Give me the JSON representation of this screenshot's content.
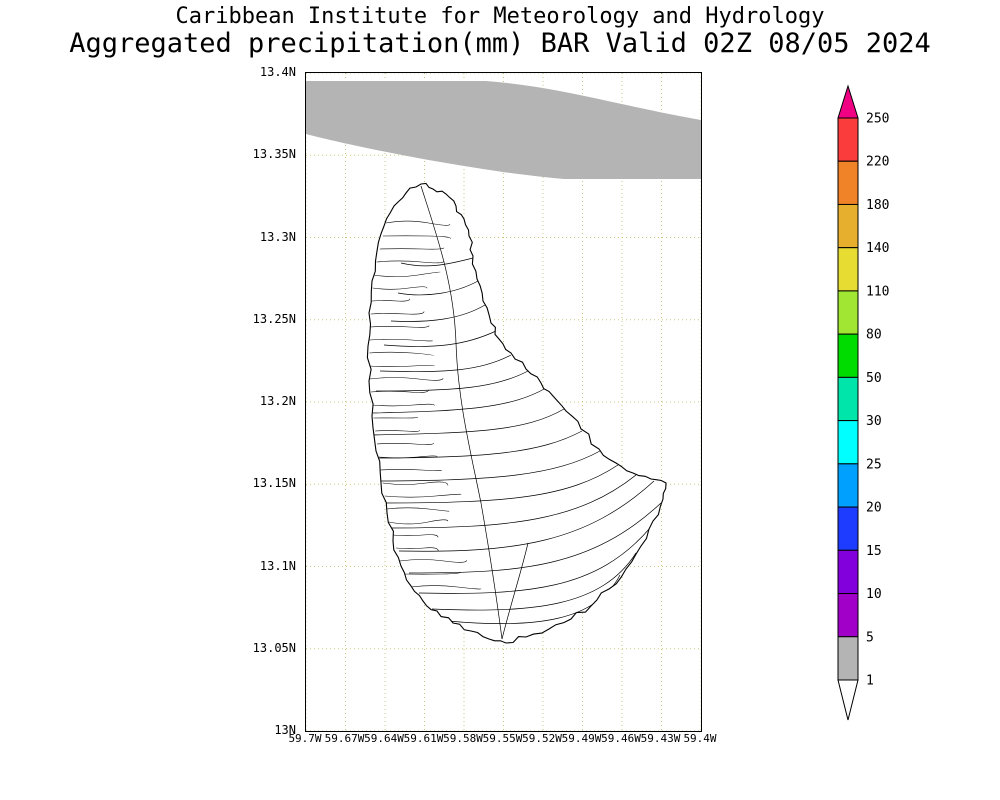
{
  "header": {
    "line1": "Caribbean Institute for Meteorology and Hydrology",
    "line2": "Aggregated precipitation(mm) BAR Valid 02Z 08/05 2024"
  },
  "axes": {
    "y_ticks": [
      "13.4N",
      "13.35N",
      "13.3N",
      "13.25N",
      "13.2N",
      "13.15N",
      "13.1N",
      "13.05N",
      "13N"
    ],
    "x_ticks": [
      "59.7W",
      "59.67W",
      "59.64W",
      "59.61W",
      "59.58W",
      "59.55W",
      "59.52W",
      "59.49W",
      "59.46W",
      "59.43W",
      "59.4W"
    ]
  },
  "colors": {
    "background": "#ffffff",
    "grid": "#c8c87d",
    "coastline": "#000000",
    "shade_1_5": "#b4b4b4",
    "text": "#000000"
  },
  "colorbar": {
    "labels_top_to_bottom": [
      "250",
      "220",
      "180",
      "140",
      "110",
      "80",
      "50",
      "30",
      "25",
      "20",
      "15",
      "10",
      "5",
      "1"
    ],
    "segments_bottom_to_top": [
      {
        "range_mm": "1-5",
        "color": "#b4b4b4"
      },
      {
        "range_mm": "5-10",
        "color": "#a000c8"
      },
      {
        "range_mm": "10-15",
        "color": "#8200dc"
      },
      {
        "range_mm": "15-20",
        "color": "#1e3cff"
      },
      {
        "range_mm": "20-25",
        "color": "#00a0ff"
      },
      {
        "range_mm": "25-30",
        "color": "#00ffff"
      },
      {
        "range_mm": "30-50",
        "color": "#00e6aa"
      },
      {
        "range_mm": "50-80",
        "color": "#00dc00"
      },
      {
        "range_mm": "80-110",
        "color": "#a0e632"
      },
      {
        "range_mm": "110-140",
        "color": "#e6dc32"
      },
      {
        "range_mm": "140-180",
        "color": "#e6af2d"
      },
      {
        "range_mm": "180-220",
        "color": "#f08228"
      },
      {
        "range_mm": "220-250",
        "color": "#fa3c3c"
      }
    ],
    "over_max_color": "#f00082",
    "under_min_color": "#ffffff"
  },
  "chart_data": {
    "type": "heatmap",
    "title": "Aggregated precipitation (mm)",
    "region_code": "BAR",
    "valid_time": "02Z 08/05 2024",
    "lat_ticks": [
      "13N",
      "13.05N",
      "13.1N",
      "13.15N",
      "13.2N",
      "13.25N",
      "13.3N",
      "13.35N",
      "13.4N"
    ],
    "lon_ticks": [
      "59.7W",
      "59.67W",
      "59.64W",
      "59.61W",
      "59.58W",
      "59.55W",
      "59.52W",
      "59.49W",
      "59.46W",
      "59.43W",
      "59.4W"
    ],
    "scale_levels_mm": [
      1,
      5,
      10,
      15,
      20,
      25,
      30,
      50,
      80,
      110,
      140,
      180,
      220,
      250
    ],
    "shaded_features": [
      {
        "value_range_mm": "1-5",
        "color": "#b4b4b4",
        "description": "shaded band across northern edge of map area"
      }
    ]
  }
}
